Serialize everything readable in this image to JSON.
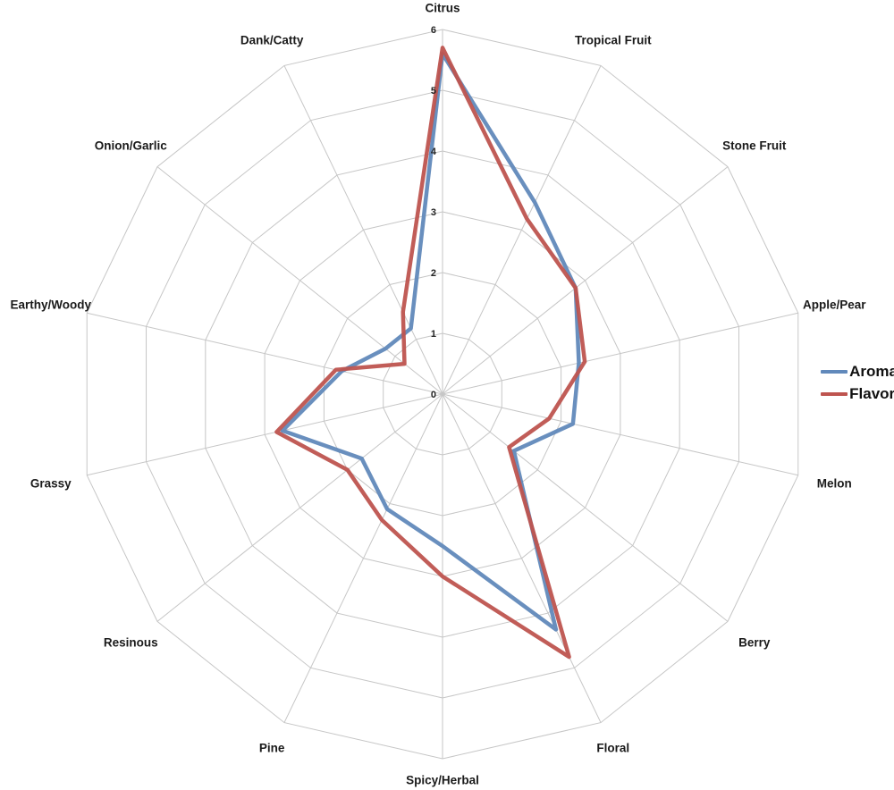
{
  "chart_data": {
    "type": "radar",
    "title": "",
    "categories": [
      "Citrus",
      "Tropical Fruit",
      "Stone Fruit",
      "Apple/Pear",
      "Melon",
      "Berry",
      "Floral",
      "Spicy/Herbal",
      "Pine",
      "Resinous",
      "Grassy",
      "Earthy/Woody",
      "Onion/Garlic",
      "Dank/Catty"
    ],
    "series": [
      {
        "name": "Aroma",
        "color": "#6189BB",
        "values": [
          5.6,
          3.5,
          2.8,
          2.3,
          2.2,
          1.5,
          4.3,
          2.5,
          2.1,
          1.7,
          2.7,
          1.7,
          1.2,
          1.2
        ]
      },
      {
        "name": "Flavor",
        "color": "#BE544F",
        "values": [
          5.7,
          3.2,
          2.8,
          2.4,
          1.8,
          1.4,
          4.8,
          3.0,
          2.3,
          2.0,
          2.8,
          1.8,
          0.8,
          1.5
        ]
      }
    ],
    "axis": {
      "min": 0,
      "max": 6,
      "step": 1,
      "tick_labels": [
        "0",
        "1",
        "2",
        "3",
        "4",
        "5",
        "6"
      ]
    },
    "grid_color": "#c6c6c6",
    "grid": "on",
    "legend_position": "right"
  }
}
